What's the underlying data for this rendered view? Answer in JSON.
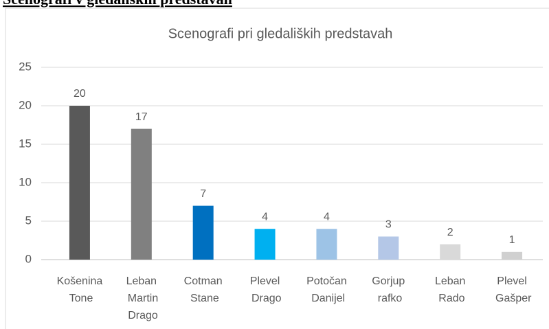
{
  "heading": "Scenografi v gledaliških predstavah",
  "chart_data": {
    "type": "bar",
    "title": "Scenografi pri gledaliških predstavah",
    "categories": [
      "Košenina Tone",
      "Leban Martin Drago",
      "Cotman Stane",
      "Plevel Drago",
      "Potočan Danijel",
      "Gorjup rafko",
      "Leban Rado",
      "Plevel Gašper"
    ],
    "values": [
      20,
      17,
      7,
      4,
      4,
      3,
      2,
      1
    ],
    "colors": [
      "#595959",
      "#808080",
      "#0070c0",
      "#00b0f0",
      "#9dc3e6",
      "#b4c7e7",
      "#d9d9d9",
      "#d0d0d0"
    ],
    "ylim": [
      0,
      25
    ],
    "yticks": [
      0,
      5,
      10,
      15,
      20,
      25
    ],
    "grid": true,
    "data_labels": true
  }
}
